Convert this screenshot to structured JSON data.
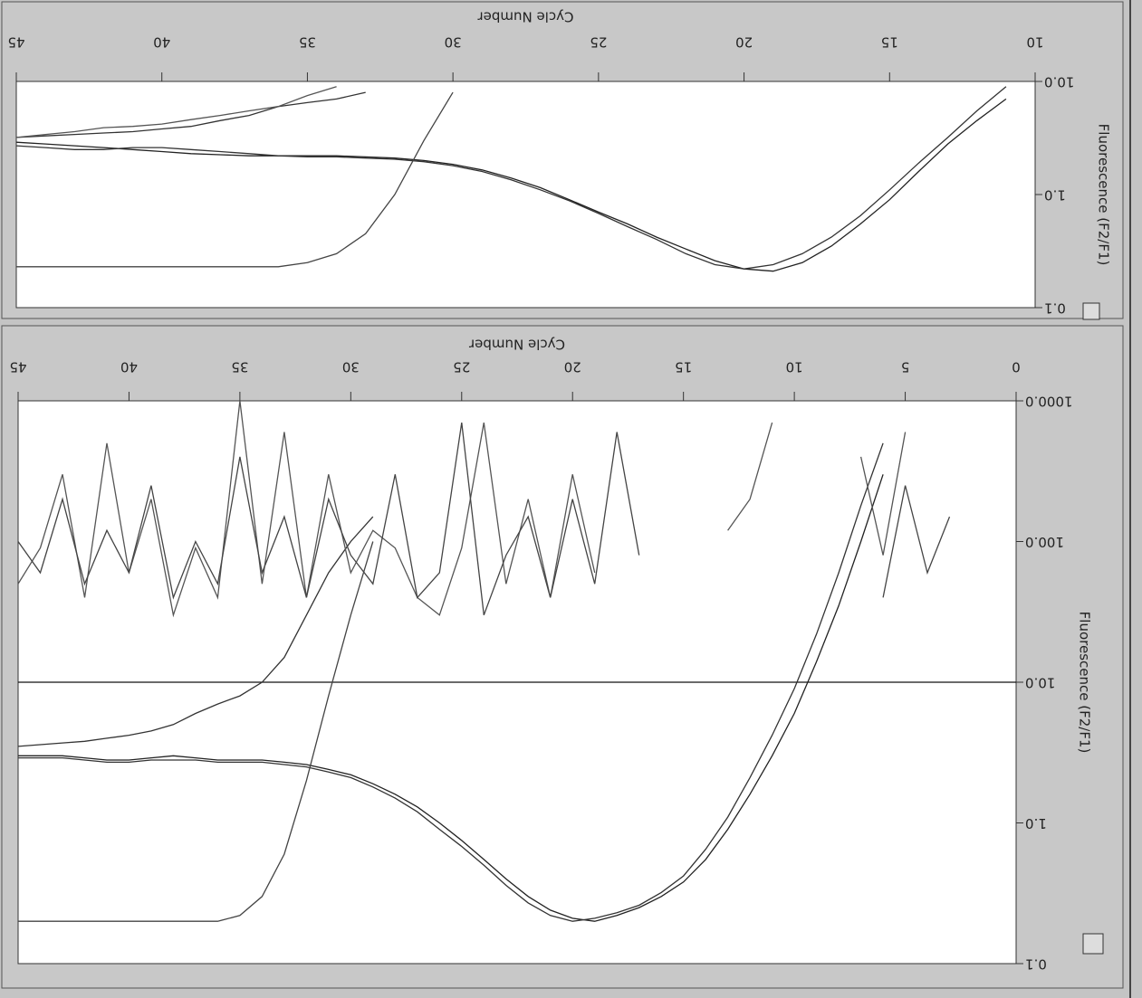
{
  "chart_data": [
    {
      "type": "line",
      "x_label": "Cycle Number",
      "y_label": "Fluorescence (F2/F1)",
      "log_y": true,
      "xlim": [
        45,
        10
      ],
      "xticks": [
        10,
        15,
        20,
        25,
        30,
        35,
        40,
        45
      ],
      "ylim": [
        0.1,
        10
      ],
      "yticks": [
        {
          "value": 0.1,
          "label": "0.1"
        },
        {
          "value": 1,
          "label": "1.0"
        },
        {
          "value": 10,
          "label": "10.0"
        }
      ],
      "x": [
        10,
        11,
        12,
        13,
        14,
        15,
        16,
        17,
        18,
        19,
        20,
        21,
        22,
        23,
        24,
        25,
        26,
        27,
        28,
        29,
        30,
        31,
        32,
        33,
        34,
        35,
        36,
        37,
        38,
        39,
        40,
        41,
        42,
        43,
        44,
        45
      ],
      "series": [
        {
          "color": "#222222",
          "values": [
            null,
            7,
            4.5,
            2.8,
            1.6,
            0.9,
            0.55,
            0.35,
            0.25,
            0.21,
            0.22,
            0.26,
            0.33,
            0.42,
            0.55,
            0.7,
            0.9,
            1.15,
            1.4,
            1.65,
            1.85,
            2.0,
            2.1,
            2.15,
            2.2,
            2.2,
            2.2,
            2.2,
            2.25,
            2.3,
            2.4,
            2.5,
            2.6,
            2.7,
            2.8,
            2.9
          ]
        },
        {
          "color": "#333333",
          "values": [
            null,
            9,
            5.5,
            3.2,
            1.9,
            1.1,
            0.65,
            0.42,
            0.3,
            0.24,
            0.22,
            0.24,
            0.3,
            0.4,
            0.52,
            0.68,
            0.88,
            1.1,
            1.35,
            1.6,
            1.8,
            1.95,
            2.05,
            2.1,
            2.15,
            2.15,
            2.2,
            2.3,
            2.4,
            2.5,
            2.6,
            2.6,
            2.5,
            2.5,
            2.6,
            2.7
          ]
        },
        {
          "color": "#444444",
          "values": [
            null,
            null,
            null,
            null,
            null,
            null,
            null,
            null,
            null,
            null,
            null,
            null,
            null,
            null,
            null,
            null,
            null,
            null,
            null,
            null,
            8,
            3,
            1.0,
            0.45,
            0.3,
            0.25,
            0.23,
            0.23,
            0.23,
            0.23,
            0.23,
            0.23,
            0.23,
            0.23,
            0.23,
            0.23
          ]
        },
        {
          "color": "#333333",
          "values": [
            null,
            null,
            null,
            null,
            null,
            null,
            null,
            null,
            null,
            null,
            null,
            null,
            null,
            null,
            null,
            null,
            null,
            null,
            null,
            null,
            null,
            null,
            null,
            8,
            7,
            6.5,
            6,
            5,
            4.5,
            4,
            3.8,
            3.6,
            3.5,
            3.4,
            3.3,
            3.2
          ]
        },
        {
          "color": "#555555",
          "values": [
            null,
            null,
            null,
            null,
            null,
            null,
            null,
            null,
            null,
            null,
            null,
            null,
            null,
            null,
            null,
            null,
            null,
            null,
            null,
            null,
            null,
            null,
            null,
            null,
            9,
            7.5,
            6,
            5.5,
            5,
            4.6,
            4.2,
            4,
            3.9,
            3.6,
            3.4,
            3.2
          ]
        }
      ]
    },
    {
      "type": "line",
      "x_label": "Cycle Number",
      "y_label": "Fluorescence (F2/F1)",
      "log_y": true,
      "threshold": 10,
      "xlim": [
        45,
        0
      ],
      "xticks": [
        0,
        5,
        10,
        15,
        20,
        25,
        30,
        35,
        40,
        45
      ],
      "ylim": [
        0.1,
        1000
      ],
      "yticks": [
        {
          "value": 0.1,
          "label": "0.1"
        },
        {
          "value": 1,
          "label": "1.0"
        },
        {
          "value": 10,
          "label": "10.0"
        },
        {
          "value": 100,
          "label": "100.0"
        },
        {
          "value": 1000,
          "label": "1000.0"
        }
      ],
      "x": [
        0,
        1,
        2,
        3,
        4,
        5,
        6,
        7,
        8,
        9,
        10,
        11,
        12,
        13,
        14,
        15,
        16,
        17,
        18,
        19,
        20,
        21,
        22,
        23,
        24,
        25,
        26,
        27,
        28,
        29,
        30,
        31,
        32,
        33,
        34,
        35,
        36,
        37,
        38,
        39,
        40,
        41,
        42,
        43,
        44,
        45
      ],
      "series": [
        {
          "color": "#222222",
          "values": [
            null,
            null,
            null,
            null,
            null,
            null,
            300,
            100,
            35,
            14,
            6,
            3,
            1.6,
            0.9,
            0.55,
            0.38,
            0.3,
            0.25,
            0.22,
            0.2,
            0.21,
            0.24,
            0.3,
            0.4,
            0.55,
            0.75,
            1.0,
            1.3,
            1.6,
            1.9,
            2.2,
            2.4,
            2.6,
            2.7,
            2.8,
            2.8,
            2.8,
            2.9,
            3.0,
            2.9,
            2.8,
            2.8,
            2.9,
            3.0,
            3.0,
            3.0
          ]
        },
        {
          "color": "#333333",
          "values": [
            null,
            null,
            null,
            null,
            null,
            null,
            500,
            180,
            60,
            22,
            9,
            4.2,
            2.1,
            1.1,
            0.65,
            0.42,
            0.32,
            0.26,
            0.23,
            0.21,
            0.2,
            0.22,
            0.27,
            0.36,
            0.5,
            0.68,
            0.9,
            1.2,
            1.5,
            1.8,
            2.1,
            2.3,
            2.5,
            2.6,
            2.7,
            2.7,
            2.7,
            2.8,
            2.8,
            2.8,
            2.7,
            2.7,
            2.8,
            2.9,
            2.9,
            2.9
          ]
        },
        {
          "color": "#444444",
          "values": [
            null,
            null,
            null,
            null,
            null,
            null,
            null,
            null,
            null,
            null,
            null,
            null,
            null,
            null,
            null,
            null,
            null,
            null,
            null,
            null,
            null,
            null,
            null,
            null,
            null,
            null,
            null,
            null,
            null,
            100,
            30,
            8,
            2,
            0.6,
            0.3,
            0.22,
            0.2,
            0.2,
            0.2,
            0.2,
            0.2,
            0.2,
            0.2,
            0.2,
            0.2,
            0.2
          ]
        },
        {
          "color": "#333333",
          "values": [
            null,
            null,
            null,
            null,
            null,
            null,
            null,
            null,
            null,
            null,
            null,
            null,
            null,
            null,
            null,
            null,
            null,
            null,
            null,
            null,
            null,
            null,
            null,
            null,
            null,
            null,
            null,
            null,
            null,
            150,
            100,
            60,
            30,
            15,
            10,
            8,
            7,
            6,
            5,
            4.5,
            4.2,
            4,
            3.8,
            3.7,
            3.6,
            3.5
          ]
        },
        {
          "color": "#555555",
          "values": [
            null,
            null,
            null,
            null,
            null,
            600,
            80,
            400,
            null,
            null,
            null,
            700,
            200,
            120,
            null,
            null,
            null,
            null,
            null,
            60,
            300,
            40,
            200,
            50,
            700,
            90,
            30,
            40,
            90,
            120,
            60,
            300,
            40,
            600,
            50,
            1000,
            40,
            90,
            30,
            200,
            60,
            500,
            40,
            300,
            90,
            50
          ]
        },
        {
          "color": "#444444",
          "values": [
            null,
            null,
            null,
            150,
            60,
            250,
            40,
            null,
            null,
            null,
            null,
            null,
            null,
            null,
            null,
            null,
            null,
            80,
            600,
            50,
            200,
            40,
            150,
            80,
            30,
            700,
            60,
            40,
            300,
            50,
            80,
            200,
            40,
            150,
            60,
            400,
            50,
            100,
            40,
            250,
            60,
            120,
            50,
            200,
            60,
            100
          ]
        }
      ]
    }
  ]
}
